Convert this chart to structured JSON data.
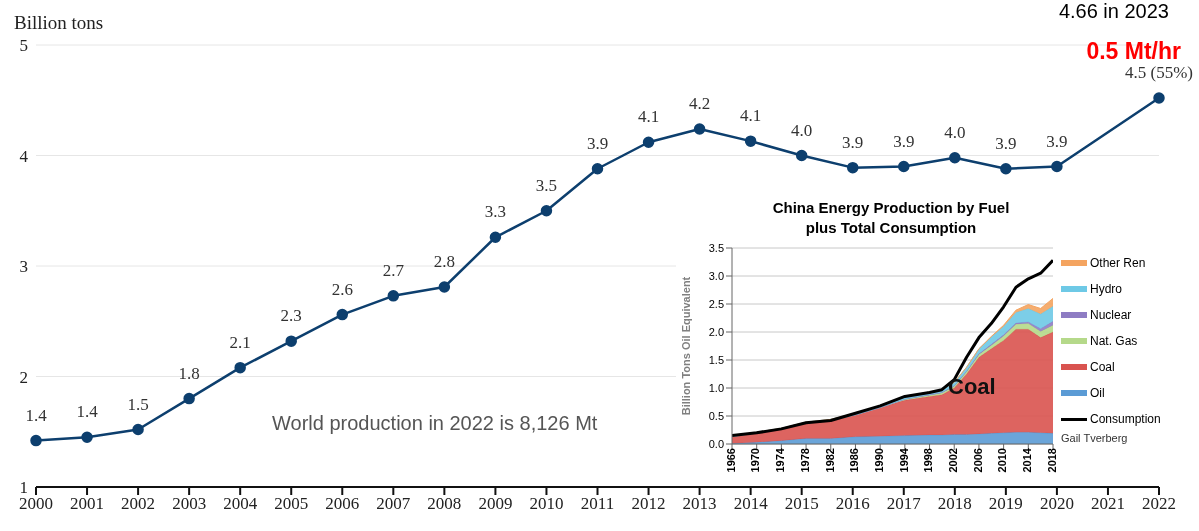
{
  "chart_data": [
    {
      "type": "line",
      "ylabel": "Billion tons",
      "categories": [
        "2000",
        "2001",
        "2002",
        "2003",
        "2004",
        "2005",
        "2006",
        "2007",
        "2008",
        "2009",
        "2010",
        "2011",
        "2012",
        "2013",
        "2014",
        "2015",
        "2016",
        "2017",
        "2018",
        "2019",
        "2020",
        "2021",
        "2022"
      ],
      "series": [
        {
          "color": "#0d3f6e",
          "values": [
            1.42,
            1.45,
            1.52,
            1.8,
            2.08,
            2.32,
            2.56,
            2.73,
            2.81,
            3.26,
            3.5,
            3.88,
            4.12,
            4.24,
            4.13,
            4.0,
            3.89,
            3.9,
            3.98,
            3.88,
            3.9,
            null,
            4.52
          ],
          "value_labels": [
            "1.4",
            "1.4",
            "1.5",
            "1.8",
            "2.1",
            "2.3",
            "2.6",
            "2.7",
            "2.8",
            "3.3",
            "3.5",
            "3.9",
            "4.1",
            "4.2",
            "4.1",
            "4.0",
            "3.9",
            "3.9",
            "4.0",
            "3.9",
            "3.9",
            null,
            "4.5 (55%)"
          ]
        }
      ],
      "ylim": [
        1,
        5
      ],
      "yticks": [
        1,
        2,
        3,
        4,
        5
      ],
      "grid": "y",
      "marker": "circle",
      "data_labels": true,
      "annotations": [
        "4.66 in 2023",
        "0.5 Mt/hr",
        "World production in 2022 is 8,126 Mt"
      ]
    },
    {
      "type": "area",
      "stacked": true,
      "title": "China Energy Production by Fuel plus Total Consumption",
      "ylabel": "Billion Tons Oil Equivalent",
      "x": [
        1966,
        1970,
        1974,
        1978,
        1982,
        1986,
        1990,
        1994,
        1998,
        2000,
        2002,
        2004,
        2006,
        2008,
        2010,
        2012,
        2014,
        2016,
        2018
      ],
      "series": [
        {
          "name": "Oil",
          "color": "#5b9bd5",
          "values": [
            0.01,
            0.03,
            0.06,
            0.1,
            0.1,
            0.13,
            0.14,
            0.15,
            0.16,
            0.16,
            0.17,
            0.17,
            0.18,
            0.19,
            0.2,
            0.21,
            0.21,
            0.2,
            0.19
          ]
        },
        {
          "name": "Coal",
          "color": "#d9534f",
          "values": [
            0.12,
            0.17,
            0.21,
            0.27,
            0.32,
            0.39,
            0.51,
            0.63,
            0.69,
            0.72,
            0.83,
            1.08,
            1.37,
            1.51,
            1.65,
            1.84,
            1.84,
            1.7,
            1.81
          ]
        },
        {
          "name": "Nat. Gas",
          "color": "#b5d98a",
          "values": [
            0,
            0,
            0,
            0,
            0,
            0,
            0,
            0.02,
            0.02,
            0.03,
            0.03,
            0.04,
            0.05,
            0.06,
            0.08,
            0.09,
            0.1,
            0.11,
            0.12
          ]
        },
        {
          "name": "Nuclear",
          "color": "#8e7cc3",
          "values": [
            0,
            0,
            0,
            0,
            0,
            0,
            0,
            0,
            0.01,
            0.01,
            0.01,
            0.01,
            0.01,
            0.02,
            0.02,
            0.02,
            0.03,
            0.05,
            0.07
          ]
        },
        {
          "name": "Hydro",
          "color": "#6ec9e6",
          "values": [
            0.01,
            0.01,
            0.01,
            0.02,
            0.02,
            0.03,
            0.03,
            0.04,
            0.05,
            0.05,
            0.06,
            0.07,
            0.09,
            0.13,
            0.15,
            0.19,
            0.24,
            0.26,
            0.27
          ]
        },
        {
          "name": "Other Ren",
          "color": "#f4a460",
          "values": [
            0,
            0,
            0,
            0,
            0,
            0,
            0,
            0,
            0,
            0,
            0,
            0,
            0,
            0.01,
            0.02,
            0.04,
            0.07,
            0.1,
            0.14
          ]
        },
        {
          "name": "Consumption",
          "type": "line",
          "color": "#000000",
          "values": [
            0.15,
            0.2,
            0.27,
            0.38,
            0.42,
            0.55,
            0.68,
            0.85,
            0.92,
            0.97,
            1.15,
            1.55,
            1.9,
            2.15,
            2.45,
            2.8,
            2.95,
            3.05,
            3.28
          ]
        }
      ],
      "xlim": [
        1966,
        2018
      ],
      "xticks": [
        1966,
        1970,
        1974,
        1978,
        1982,
        1986,
        1990,
        1994,
        1998,
        2002,
        2006,
        2010,
        2014,
        2018
      ],
      "ylim": [
        0,
        3.5
      ],
      "yticks": [
        {
          "value": 0,
          "label": "0.0"
        },
        0.5,
        {
          "value": 1,
          "label": "1.0"
        },
        1.5,
        {
          "value": 2,
          "label": "2.0"
        },
        2.5,
        {
          "value": 3,
          "label": "3.0"
        },
        3.5
      ],
      "grid": "y",
      "legend": "right",
      "annotations": [
        "Coal",
        "Gail Tverberg"
      ]
    }
  ]
}
